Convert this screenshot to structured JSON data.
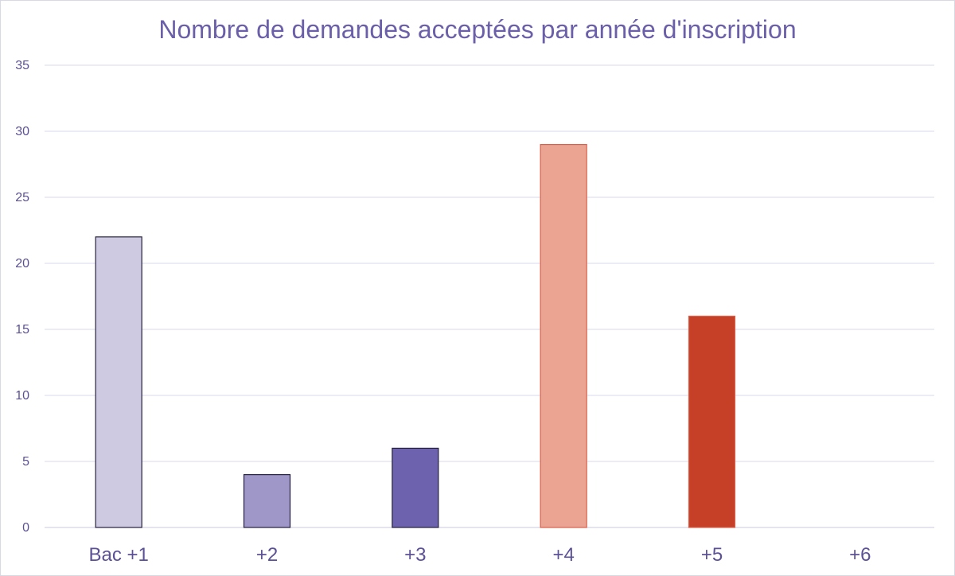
{
  "chart_data": {
    "type": "bar",
    "title": "Nombre de demandes acceptées par année d'inscription",
    "categories": [
      "Bac +1",
      "+2",
      "+3",
      "+4",
      "+5",
      "+6"
    ],
    "values": [
      22,
      4,
      6,
      29,
      16,
      0
    ],
    "ylim": [
      0,
      35
    ],
    "yticks": [
      0,
      5,
      10,
      15,
      20,
      25,
      30,
      35
    ],
    "grid": true,
    "legend": "none",
    "bar_colors": [
      "#cecae2",
      "#9e97c8",
      "#6c62ad",
      "#eba392",
      "#c64027",
      "#c64027"
    ],
    "bar_stroke_colors": [
      "#26213f",
      "#26213f",
      "#26213f",
      "#d9604a",
      "#d9604a",
      "#d9604a"
    ]
  },
  "colors": {
    "title": "#6a5fa8",
    "axis_text": "#5b5196",
    "gridline": "#d8d8ec",
    "axis_line": "#c9c9dd"
  }
}
